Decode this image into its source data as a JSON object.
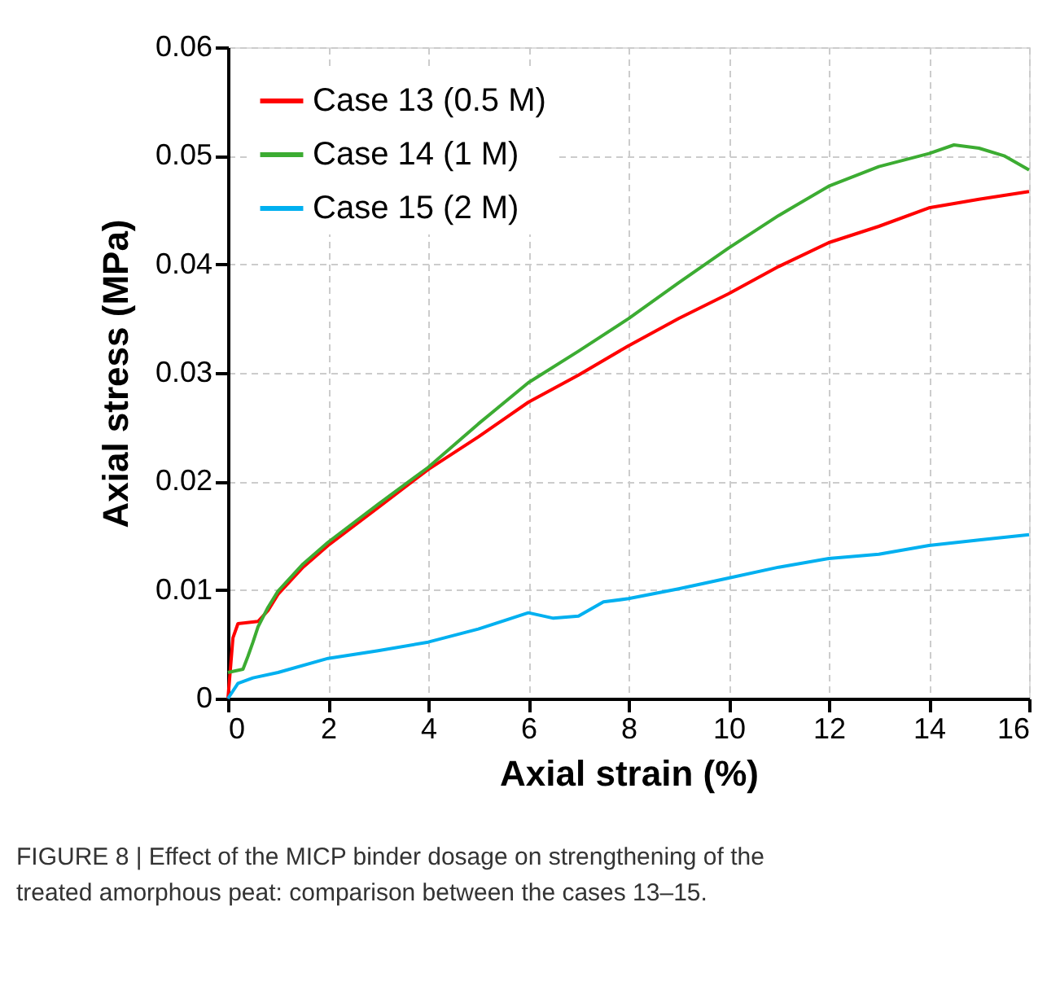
{
  "chart_data": {
    "type": "line",
    "xlabel": "Axial strain (%)",
    "ylabel": "Axial stress (MPa)",
    "xlim": [
      0,
      16
    ],
    "xticks": [
      0,
      2,
      4,
      6,
      8,
      10,
      12,
      14,
      16
    ],
    "ylim": [
      0,
      0.06
    ],
    "yticks": [
      0,
      0.01,
      0.02,
      0.03,
      0.04,
      0.05,
      0.06
    ],
    "grid": true,
    "legend": "top left",
    "marker": "none",
    "line_style": "solid",
    "series": [
      {
        "name": "Case 13 (0.5 M)",
        "color": "#ff0000",
        "x": [
          0,
          0.1,
          0.2,
          0.6,
          0.8,
          1,
          1.5,
          2,
          3,
          4,
          5,
          6,
          7,
          8,
          9,
          10,
          11,
          12,
          13,
          14,
          15,
          16
        ],
        "values": [
          0,
          0.0056,
          0.0069,
          0.0071,
          0.0081,
          0.0096,
          0.0121,
          0.0141,
          0.0176,
          0.0211,
          0.0241,
          0.0273,
          0.0298,
          0.0325,
          0.035,
          0.0373,
          0.0398,
          0.042,
          0.0435,
          0.0452,
          0.046,
          0.0467
        ]
      },
      {
        "name": "Case 14 (1 M)",
        "color": "#3cac32",
        "x": [
          0,
          0.3,
          0.4,
          0.5,
          0.6,
          0.8,
          1,
          1.5,
          2,
          3,
          4,
          5,
          6,
          7,
          8,
          9,
          10,
          11,
          12,
          13,
          14,
          14.5,
          15,
          15.5,
          16
        ],
        "values": [
          0.0024,
          0.0027,
          0.0039,
          0.0052,
          0.0066,
          0.0084,
          0.0099,
          0.0124,
          0.0144,
          0.0179,
          0.0213,
          0.0253,
          0.0291,
          0.032,
          0.035,
          0.0383,
          0.0415,
          0.0445,
          0.0472,
          0.049,
          0.0502,
          0.051,
          0.0507,
          0.05,
          0.0487
        ]
      },
      {
        "name": "Case 15 (2 M)",
        "color": "#00b0f0",
        "x": [
          0,
          0.2,
          0.5,
          1,
          2,
          3,
          4,
          5,
          5.8,
          6,
          6.5,
          7,
          7.5,
          8,
          9,
          10,
          11,
          12,
          13,
          14,
          15,
          16
        ],
        "values": [
          0,
          0.0014,
          0.0019,
          0.0024,
          0.0037,
          0.0044,
          0.0052,
          0.0064,
          0.0076,
          0.0079,
          0.0074,
          0.0076,
          0.0089,
          0.0092,
          0.0101,
          0.0111,
          0.0121,
          0.0129,
          0.0133,
          0.0141,
          0.0146,
          0.0151
        ]
      }
    ],
    "annotations": [
      "FIGURE 8 | Effect of the MICP binder dosage on strengthening of the treated amorphous peat: comparison between the cases 13–15."
    ]
  }
}
